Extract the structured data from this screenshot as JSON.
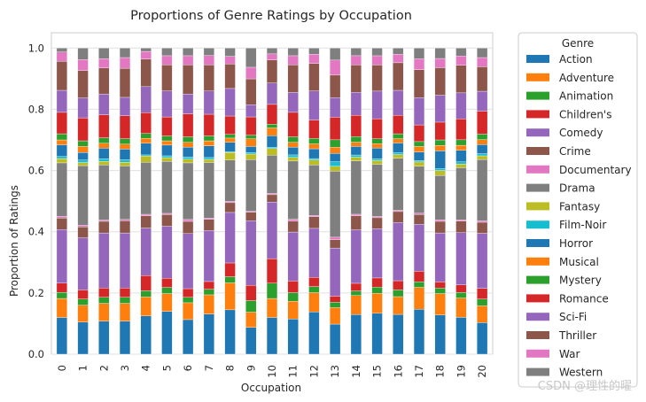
{
  "chart_data": {
    "type": "bar",
    "stacked": true,
    "title": "Proportions of Genre Ratings by Occupation",
    "xlabel": "Occupation",
    "ylabel": "Proportion of Ratings",
    "ylim": [
      0,
      1.05
    ],
    "yticks": [
      "0.0",
      "0.2",
      "0.4",
      "0.6",
      "0.8",
      "1.0"
    ],
    "grid": true,
    "legend_title": "Genre",
    "legend_position": "outside-right",
    "categories": [
      "0",
      "1",
      "2",
      "3",
      "4",
      "5",
      "6",
      "7",
      "8",
      "9",
      "10",
      "11",
      "12",
      "13",
      "14",
      "15",
      "16",
      "17",
      "18",
      "19",
      "20"
    ],
    "series": [
      {
        "name": "Action",
        "color": "#1f77b4",
        "values": [
          0.12,
          0.105,
          0.108,
          0.108,
          0.125,
          0.14,
          0.113,
          0.13,
          0.145,
          0.088,
          0.12,
          0.115,
          0.138,
          0.1,
          0.13,
          0.133,
          0.13,
          0.148,
          0.128,
          0.12,
          0.103
        ]
      },
      {
        "name": "Adventure",
        "color": "#ff7f0e",
        "values": [
          0.062,
          0.055,
          0.058,
          0.058,
          0.062,
          0.058,
          0.055,
          0.062,
          0.088,
          0.05,
          0.062,
          0.058,
          0.063,
          0.055,
          0.062,
          0.065,
          0.058,
          0.072,
          0.07,
          0.063,
          0.055
        ]
      },
      {
        "name": "Animation",
        "color": "#2ca02c",
        "values": [
          0.02,
          0.02,
          0.02,
          0.02,
          0.02,
          0.02,
          0.018,
          0.018,
          0.02,
          0.038,
          0.05,
          0.028,
          0.02,
          0.018,
          0.015,
          0.02,
          0.022,
          0.018,
          0.018,
          0.018,
          0.022
        ]
      },
      {
        "name": "Children's",
        "color": "#d62728",
        "values": [
          0.03,
          0.03,
          0.03,
          0.03,
          0.05,
          0.03,
          0.028,
          0.025,
          0.045,
          0.05,
          0.08,
          0.038,
          0.03,
          0.02,
          0.025,
          0.03,
          0.03,
          0.035,
          0.02,
          0.025,
          0.035
        ]
      },
      {
        "name": "Comedy",
        "color": "#9467bd",
        "values": [
          0.175,
          0.17,
          0.18,
          0.18,
          0.155,
          0.17,
          0.18,
          0.165,
          0.165,
          0.212,
          0.185,
          0.16,
          0.16,
          0.16,
          0.175,
          0.16,
          0.19,
          0.155,
          0.16,
          0.17,
          0.18
        ]
      },
      {
        "name": "Crime",
        "color": "#8c564b",
        "values": [
          0.038,
          0.036,
          0.038,
          0.04,
          0.04,
          0.038,
          0.04,
          0.036,
          0.032,
          0.028,
          0.024,
          0.036,
          0.038,
          0.028,
          0.046,
          0.036,
          0.036,
          0.032,
          0.038,
          0.038,
          0.036
        ]
      },
      {
        "name": "Documentary",
        "color": "#e377c2",
        "values": [
          0.005,
          0.005,
          0.004,
          0.004,
          0.005,
          0.004,
          0.006,
          0.004,
          0.004,
          0.003,
          0.004,
          0.006,
          0.004,
          0.008,
          0.005,
          0.004,
          0.004,
          0.004,
          0.005,
          0.004,
          0.005
        ]
      },
      {
        "name": "Drama",
        "color": "#7f7f7f",
        "values": [
          0.175,
          0.195,
          0.18,
          0.175,
          0.17,
          0.17,
          0.185,
          0.18,
          0.135,
          0.17,
          0.125,
          0.19,
          0.165,
          0.22,
          0.175,
          0.17,
          0.17,
          0.155,
          0.145,
          0.17,
          0.2
        ]
      },
      {
        "name": "Fantasy",
        "color": "#bcbd22",
        "values": [
          0.014,
          0.01,
          0.012,
          0.012,
          0.02,
          0.012,
          0.012,
          0.01,
          0.025,
          0.018,
          0.022,
          0.012,
          0.016,
          0.016,
          0.012,
          0.012,
          0.012,
          0.014,
          0.016,
          0.012,
          0.012
        ]
      },
      {
        "name": "Film-Noir",
        "color": "#17becf",
        "values": [
          0.007,
          0.008,
          0.008,
          0.008,
          0.004,
          0.006,
          0.007,
          0.006,
          0.003,
          0.005,
          0.004,
          0.008,
          0.005,
          0.015,
          0.007,
          0.006,
          0.006,
          0.005,
          0.006,
          0.007,
          0.007
        ]
      },
      {
        "name": "Horror",
        "color": "#1f77b4",
        "values": [
          0.038,
          0.025,
          0.035,
          0.035,
          0.038,
          0.035,
          0.032,
          0.038,
          0.03,
          0.02,
          0.038,
          0.025,
          0.032,
          0.028,
          0.028,
          0.035,
          0.032,
          0.028,
          0.058,
          0.038,
          0.03
        ]
      },
      {
        "name": "Musical",
        "color": "#ff7f0e",
        "values": [
          0.016,
          0.02,
          0.016,
          0.016,
          0.016,
          0.014,
          0.016,
          0.016,
          0.014,
          0.025,
          0.025,
          0.016,
          0.016,
          0.02,
          0.014,
          0.014,
          0.014,
          0.018,
          0.018,
          0.016,
          0.016
        ]
      },
      {
        "name": "Mystery",
        "color": "#2ca02c",
        "values": [
          0.02,
          0.018,
          0.018,
          0.018,
          0.016,
          0.016,
          0.018,
          0.016,
          0.012,
          0.012,
          0.012,
          0.018,
          0.018,
          0.025,
          0.018,
          0.016,
          0.016,
          0.016,
          0.018,
          0.018,
          0.018
        ]
      },
      {
        "name": "Romance",
        "color": "#d62728",
        "values": [
          0.07,
          0.075,
          0.075,
          0.075,
          0.068,
          0.062,
          0.075,
          0.07,
          0.06,
          0.06,
          0.065,
          0.08,
          0.06,
          0.075,
          0.07,
          0.065,
          0.06,
          0.055,
          0.058,
          0.068,
          0.075
        ]
      },
      {
        "name": "Sci-Fi",
        "color": "#9467bd",
        "values": [
          0.072,
          0.065,
          0.068,
          0.06,
          0.085,
          0.085,
          0.065,
          0.075,
          0.09,
          0.04,
          0.07,
          0.065,
          0.095,
          0.065,
          0.075,
          0.09,
          0.082,
          0.09,
          0.088,
          0.085,
          0.065
        ]
      },
      {
        "name": "Thriller",
        "color": "#8c564b",
        "values": [
          0.095,
          0.09,
          0.085,
          0.095,
          0.09,
          0.085,
          0.095,
          0.085,
          0.08,
          0.085,
          0.075,
          0.09,
          0.09,
          0.075,
          0.09,
          0.085,
          0.09,
          0.092,
          0.09,
          0.09,
          0.08
        ]
      },
      {
        "name": "War",
        "color": "#e377c2",
        "values": [
          0.03,
          0.035,
          0.03,
          0.035,
          0.025,
          0.03,
          0.03,
          0.03,
          0.025,
          0.038,
          0.02,
          0.03,
          0.03,
          0.05,
          0.03,
          0.03,
          0.028,
          0.036,
          0.03,
          0.03,
          0.03
        ]
      },
      {
        "name": "Western",
        "color": "#7f7f7f",
        "values": [
          0.013,
          0.038,
          0.035,
          0.031,
          0.011,
          0.025,
          0.025,
          0.024,
          0.027,
          0.063,
          0.019,
          0.025,
          0.02,
          0.04,
          0.025,
          0.025,
          0.02,
          0.035,
          0.034,
          0.026,
          0.031
        ]
      }
    ]
  },
  "watermark": "CSDN @理性的曜"
}
